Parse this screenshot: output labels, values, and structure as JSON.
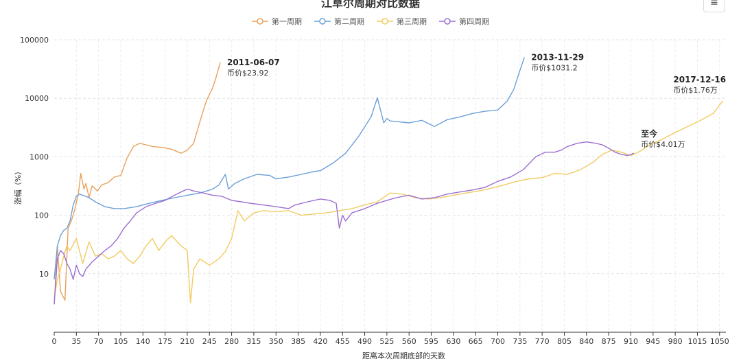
{
  "chart_data": {
    "type": "line",
    "title": "江草尔周期对比数据",
    "xlabel": "距离本次周期底部的天数",
    "ylabel": "涨幅（%）",
    "y_scale": "log",
    "ylim": [
      1,
      100000
    ],
    "xlim": [
      0,
      1060
    ],
    "y_ticks": [
      10,
      100,
      1000,
      10000,
      100000
    ],
    "y_tick_labels": [
      "10",
      "100",
      "1000",
      "10000",
      "100000"
    ],
    "x_ticks": [
      0,
      35,
      70,
      105,
      140,
      175,
      210,
      245,
      280,
      315,
      350,
      385,
      420,
      455,
      490,
      525,
      560,
      595,
      630,
      665,
      700,
      735,
      770,
      805,
      840,
      875,
      910,
      945,
      980,
      1015,
      1050
    ],
    "x_tick_labels": [
      "0",
      "35",
      "70",
      "105",
      "140",
      "175",
      "210",
      "245",
      "280",
      "315",
      "350",
      "385",
      "420",
      "455",
      "490",
      "525",
      "560",
      "595",
      "630",
      "665",
      "700",
      "735",
      "770",
      "805",
      "840",
      "875",
      "910",
      "945",
      "980",
      "1015",
      "1050"
    ],
    "grid": true,
    "legend_position": "top-center",
    "series": [
      {
        "name": "第一周期",
        "color": "#e8a15c",
        "x": [
          0,
          5,
          10,
          17,
          22,
          27,
          32,
          38,
          42,
          47,
          50,
          55,
          60,
          68,
          75,
          85,
          95,
          105,
          115,
          125,
          135,
          145,
          155,
          170,
          185,
          200,
          210,
          220,
          230,
          240,
          250,
          255,
          262
        ],
        "y": [
          3,
          30,
          5,
          3.5,
          60,
          80,
          120,
          230,
          520,
          280,
          350,
          200,
          320,
          260,
          330,
          360,
          450,
          480,
          950,
          1500,
          1700,
          1600,
          1500,
          1450,
          1350,
          1150,
          1300,
          1700,
          4000,
          9000,
          15000,
          22000,
          41000
        ]
      },
      {
        "name": "第二周期",
        "color": "#6a9fd8",
        "x": [
          0,
          5,
          10,
          15,
          20,
          25,
          30,
          35,
          40,
          45,
          55,
          65,
          80,
          95,
          110,
          130,
          150,
          170,
          190,
          210,
          230,
          250,
          260,
          270,
          275,
          285,
          300,
          320,
          340,
          350,
          370,
          390,
          410,
          420,
          440,
          460,
          480,
          500,
          510,
          520,
          525,
          530,
          540,
          560,
          580,
          600,
          620,
          640,
          660,
          680,
          700,
          715,
          725,
          735,
          742
        ],
        "y": [
          8,
          30,
          45,
          55,
          60,
          80,
          150,
          210,
          230,
          220,
          200,
          170,
          140,
          130,
          130,
          140,
          160,
          180,
          200,
          220,
          240,
          280,
          330,
          500,
          280,
          350,
          420,
          500,
          480,
          420,
          450,
          500,
          560,
          580,
          780,
          1150,
          2200,
          4800,
          10200,
          3800,
          4500,
          4100,
          4000,
          3800,
          4200,
          3300,
          4300,
          4800,
          5500,
          6000,
          6300,
          9000,
          14000,
          30000,
          50000
        ]
      },
      {
        "name": "第三周期",
        "color": "#f0cb5f",
        "x": [
          0,
          5,
          10,
          15,
          20,
          25,
          35,
          45,
          55,
          65,
          75,
          85,
          95,
          105,
          115,
          125,
          135,
          145,
          155,
          165,
          175,
          185,
          200,
          210,
          215,
          220,
          230,
          245,
          260,
          270,
          280,
          290,
          300,
          315,
          330,
          350,
          370,
          390,
          410,
          430,
          450,
          470,
          490,
          510,
          530,
          550,
          570,
          590,
          610,
          630,
          650,
          670,
          690,
          710,
          730,
          750,
          770,
          790,
          810,
          830,
          850,
          865,
          880,
          895,
          910,
          925,
          940,
          960,
          980,
          1000,
          1020,
          1040,
          1055
        ],
        "y": [
          4,
          8,
          12,
          20,
          30,
          25,
          40,
          15,
          35,
          20,
          22,
          18,
          20,
          25,
          18,
          15,
          20,
          30,
          40,
          25,
          35,
          45,
          30,
          25,
          3.2,
          12,
          18,
          14,
          18,
          24,
          40,
          120,
          80,
          110,
          120,
          115,
          120,
          100,
          105,
          110,
          120,
          130,
          150,
          170,
          240,
          230,
          200,
          190,
          200,
          220,
          240,
          260,
          290,
          330,
          380,
          420,
          440,
          520,
          500,
          600,
          800,
          1100,
          1300,
          1200,
          1050,
          1250,
          1600,
          2000,
          2600,
          3300,
          4200,
          5500,
          9000
        ]
      },
      {
        "name": "第四周期",
        "color": "#9b6fd1",
        "x": [
          0,
          5,
          10,
          15,
          20,
          25,
          30,
          35,
          40,
          45,
          50,
          60,
          70,
          80,
          90,
          100,
          110,
          120,
          130,
          145,
          160,
          175,
          190,
          200,
          210,
          220,
          235,
          250,
          265,
          280,
          295,
          310,
          330,
          350,
          370,
          380,
          400,
          420,
          435,
          445,
          450,
          455,
          460,
          470,
          490,
          510,
          525,
          540,
          560,
          580,
          600,
          620,
          640,
          660,
          680,
          700,
          720,
          740,
          760,
          775,
          790,
          800,
          810,
          825,
          840,
          855,
          865,
          875,
          885,
          895,
          905,
          915
        ],
        "y": [
          3,
          18,
          25,
          22,
          15,
          12,
          8,
          14,
          10,
          9,
          12,
          16,
          20,
          25,
          30,
          40,
          60,
          80,
          110,
          140,
          160,
          180,
          220,
          250,
          280,
          260,
          240,
          220,
          210,
          180,
          170,
          160,
          150,
          140,
          130,
          150,
          170,
          190,
          180,
          160,
          60,
          100,
          80,
          110,
          130,
          160,
          180,
          200,
          220,
          190,
          200,
          230,
          250,
          270,
          300,
          380,
          450,
          600,
          1000,
          1200,
          1200,
          1300,
          1500,
          1700,
          1800,
          1700,
          1600,
          1400,
          1200,
          1100,
          1050,
          1150
        ]
      }
    ],
    "annotations": [
      {
        "date": "2011-06-07",
        "price": "币价$23.92",
        "x": 262,
        "y": 41000
      },
      {
        "date": "2013-11-29",
        "price": "币价$1031.2",
        "x": 742,
        "y": 50000
      },
      {
        "date": "2017-12-16",
        "price": "币价$1.76万",
        "x": 1055,
        "y": 9000
      },
      {
        "date": "至今",
        "price": "币价$4.01万",
        "x": 915,
        "y": 1150
      }
    ]
  },
  "toolbar": {
    "menu_icon": "≡"
  }
}
